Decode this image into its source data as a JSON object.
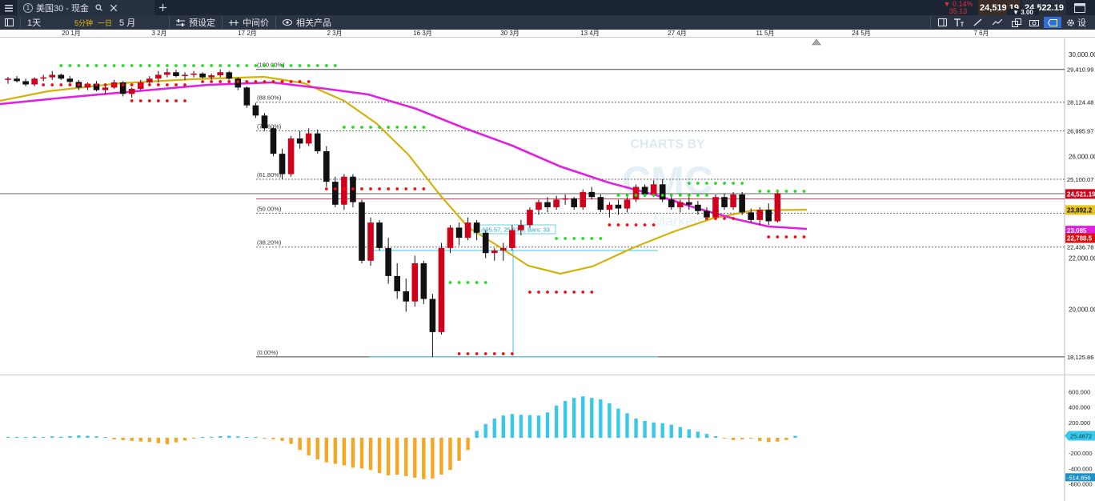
{
  "topbar": {
    "menu_icon": "hamburger-icon",
    "tab_number": "1",
    "tab_title": "美国30 - 现金",
    "tab_search_icon": "search-icon",
    "tab_close_icon": "close-icon",
    "add_tab_icon": "plus-icon",
    "change_pct": "▼ 0.14%",
    "change_pts": "35.13",
    "bid": "24,519.19",
    "spread": "▼ 3.00",
    "ask": "24,522.19",
    "window_icon": "window-icon"
  },
  "toolbar": {
    "sidebar_icon": "panel-icon",
    "interval": "1天",
    "interval_5m": "5分钟",
    "interval_1d": "一日",
    "range": "5 月",
    "preset_label": "预设定",
    "mid_price_label": "中间价",
    "related_label": "相关产品",
    "settings_label": "设",
    "colors": {
      "accent": "#2f6fd6",
      "up": "#d0021b",
      "down": "#111111",
      "ma_fast": "#d4b20a",
      "ma_slow": "#e020e0",
      "dot_green": "#22dd22",
      "dot_red": "#ee1111",
      "macd_pos": "#3ac8ea",
      "macd_neg": "#f5a623"
    }
  },
  "time_axis": [
    "20 1月",
    "3 2月",
    "17 2月",
    "2 3月",
    "16 3月",
    "30 3月",
    "13 4月",
    "27 4月",
    "11 5月",
    "24 5月",
    "7 6月"
  ],
  "watermark": {
    "line1": "CHARTS BY",
    "line2": "CMC",
    "line3": "Markets"
  },
  "measure_label": "4,695.57, 25.83%, Bars: 33",
  "chart_data": {
    "type": "candlestick",
    "interval": "daily",
    "y_ticks": [
      "30,000.00",
      "26,000.00",
      "22,000.00",
      "20,000.00"
    ],
    "ylim": [
      17800,
      30500
    ],
    "fib_levels": [
      {
        "label": "(100.00%)",
        "value": 29410.99,
        "tag": "29,410.99"
      },
      {
        "label": "(88.60%)",
        "value": 28124.48,
        "tag": "28,124.48"
      },
      {
        "label": "(78.60%)",
        "value": 26995.97,
        "tag": "26,995.97"
      },
      {
        "label": "(61.80%)",
        "value": 25100.07,
        "tag": "25,100.07"
      },
      {
        "label": "(50.00%)",
        "value": 23768.42,
        "tag": ""
      },
      {
        "label": "(38.20%)",
        "value": 22436.78,
        "tag": "22,436.78"
      },
      {
        "label": "(0.00%)",
        "value": 18125.86,
        "tag": "18,125.86"
      }
    ],
    "current_price": {
      "value": 24521.19,
      "tag": "24,521.19"
    },
    "ma_fast_tag": {
      "value": 23892.2,
      "tag": "23,892.2"
    },
    "ma_slow_tag": {
      "value": 23085,
      "tag": "23,085"
    },
    "red_tag": {
      "value": 22788.5,
      "tag": "22,788.5"
    },
    "candles": [
      [
        29000,
        29120,
        28850,
        29050
      ],
      [
        29050,
        29150,
        28900,
        28950
      ],
      [
        28950,
        29050,
        28750,
        28820
      ],
      [
        28820,
        29100,
        28750,
        29050
      ],
      [
        29050,
        29200,
        28950,
        29100
      ],
      [
        29100,
        29350,
        29000,
        29200
      ],
      [
        29200,
        29250,
        29000,
        29050
      ],
      [
        29050,
        29150,
        28850,
        28920
      ],
      [
        28920,
        29000,
        28600,
        28700
      ],
      [
        28700,
        28900,
        28600,
        28850
      ],
      [
        28850,
        28950,
        28550,
        28600
      ],
      [
        28600,
        28800,
        28450,
        28700
      ],
      [
        28700,
        29000,
        28650,
        28900
      ],
      [
        28900,
        28950,
        28350,
        28450
      ],
      [
        28450,
        28700,
        28300,
        28650
      ],
      [
        28650,
        29000,
        28600,
        28900
      ],
      [
        28900,
        29150,
        28800,
        29050
      ],
      [
        29050,
        29350,
        28900,
        29200
      ],
      [
        29200,
        29450,
        29100,
        29300
      ],
      [
        29300,
        29400,
        29100,
        29150
      ],
      [
        29150,
        29300,
        29000,
        29200
      ],
      [
        29200,
        29350,
        29100,
        29250
      ],
      [
        29250,
        29300,
        29050,
        29100
      ],
      [
        29100,
        29250,
        29000,
        29180
      ],
      [
        29180,
        29410,
        29100,
        29300
      ],
      [
        29300,
        29350,
        29000,
        29050
      ],
      [
        29050,
        29100,
        28600,
        28700
      ],
      [
        28700,
        28750,
        27900,
        28000
      ],
      [
        28000,
        28100,
        27500,
        27600
      ],
      [
        27600,
        27700,
        27000,
        27100
      ],
      [
        27100,
        27150,
        26000,
        26100
      ],
      [
        26100,
        26300,
        25100,
        25300
      ],
      [
        25300,
        26800,
        25200,
        26700
      ],
      [
        26700,
        27000,
        26300,
        26500
      ],
      [
        26500,
        27100,
        26400,
        26900
      ],
      [
        26900,
        27050,
        26100,
        26200
      ],
      [
        26200,
        26400,
        24800,
        25000
      ],
      [
        25000,
        25200,
        24000,
        24100
      ],
      [
        24100,
        25300,
        23900,
        25200
      ],
      [
        25200,
        25300,
        24000,
        24200
      ],
      [
        24200,
        24300,
        21800,
        21900
      ],
      [
        21900,
        23600,
        21700,
        23400
      ],
      [
        23400,
        23500,
        22300,
        22400
      ],
      [
        22400,
        22800,
        21000,
        21300
      ],
      [
        21300,
        21800,
        20400,
        20700
      ],
      [
        20700,
        21200,
        19900,
        20300
      ],
      [
        20300,
        22100,
        20100,
        21800
      ],
      [
        21800,
        21900,
        20200,
        20400
      ],
      [
        20400,
        20600,
        18125,
        19100
      ],
      [
        19100,
        22600,
        19000,
        22400
      ],
      [
        22400,
        23300,
        22200,
        23200
      ],
      [
        23200,
        23400,
        22500,
        22800
      ],
      [
        22800,
        23600,
        22700,
        23400
      ],
      [
        23400,
        23500,
        22700,
        23000
      ],
      [
        23000,
        23100,
        22000,
        22200
      ],
      [
        22200,
        22400,
        21900,
        22300
      ],
      [
        22300,
        22600,
        21900,
        22400
      ],
      [
        22400,
        23300,
        22300,
        23100
      ],
      [
        23100,
        23500,
        22900,
        23300
      ],
      [
        23300,
        24000,
        23200,
        23900
      ],
      [
        23900,
        24300,
        23700,
        24200
      ],
      [
        24200,
        24400,
        23800,
        24000
      ],
      [
        24000,
        24450,
        23900,
        24300
      ],
      [
        24300,
        24500,
        24100,
        24350
      ],
      [
        24350,
        24400,
        23900,
        24000
      ],
      [
        24000,
        24700,
        23900,
        24600
      ],
      [
        24600,
        24800,
        24300,
        24400
      ],
      [
        24400,
        24500,
        23800,
        23900
      ],
      [
        23900,
        24200,
        23600,
        24100
      ],
      [
        24100,
        24300,
        23700,
        23950
      ],
      [
        23950,
        24400,
        23800,
        24300
      ],
      [
        24300,
        24900,
        24200,
        24800
      ],
      [
        24800,
        24900,
        24400,
        24500
      ],
      [
        24500,
        25050,
        24400,
        24900
      ],
      [
        24900,
        25100,
        24200,
        24300
      ],
      [
        24300,
        24450,
        23900,
        24000
      ],
      [
        24000,
        24300,
        23800,
        24200
      ],
      [
        24200,
        24400,
        23900,
        24100
      ],
      [
        24100,
        24250,
        23700,
        23850
      ],
      [
        23850,
        24000,
        23500,
        23600
      ],
      [
        23600,
        24500,
        23500,
        24400
      ],
      [
        24400,
        24550,
        23900,
        24000
      ],
      [
        24000,
        24600,
        23900,
        24500
      ],
      [
        24500,
        24600,
        23700,
        23800
      ],
      [
        23800,
        23950,
        23400,
        23500
      ],
      [
        23500,
        24000,
        23300,
        23900
      ],
      [
        23900,
        24150,
        23300,
        23450
      ],
      [
        23450,
        24700,
        23400,
        24550
      ]
    ],
    "macd": [
      12,
      8,
      4,
      15,
      6,
      18,
      14,
      22,
      30,
      26,
      18,
      6,
      -20,
      -32,
      -40,
      -48,
      -55,
      -70,
      -85,
      -60,
      -36,
      -10,
      5,
      12,
      20,
      26,
      18,
      10,
      5,
      -5,
      -18,
      -40,
      -80,
      -160,
      -230,
      -280,
      -320,
      -340,
      -360,
      -390,
      -400,
      -420,
      -460,
      -490,
      -480,
      -500,
      -520,
      -540,
      -530,
      -480,
      -420,
      -300,
      -160,
      90,
      180,
      250,
      290,
      310,
      300,
      295,
      290,
      330,
      420,
      480,
      520,
      540,
      520,
      500,
      450,
      380,
      320,
      250,
      220,
      200,
      190,
      170,
      140,
      110,
      80,
      50,
      20,
      -10,
      -30,
      -20,
      -10,
      -40,
      -55,
      -50,
      -30,
      25
    ],
    "macd_ticks": [
      "600.000",
      "400.000",
      "200.000",
      "-200.000",
      "-400.000",
      "-600.000"
    ],
    "macd_value_tag": "25.4672",
    "macd_neg_tag": "-514.856"
  }
}
